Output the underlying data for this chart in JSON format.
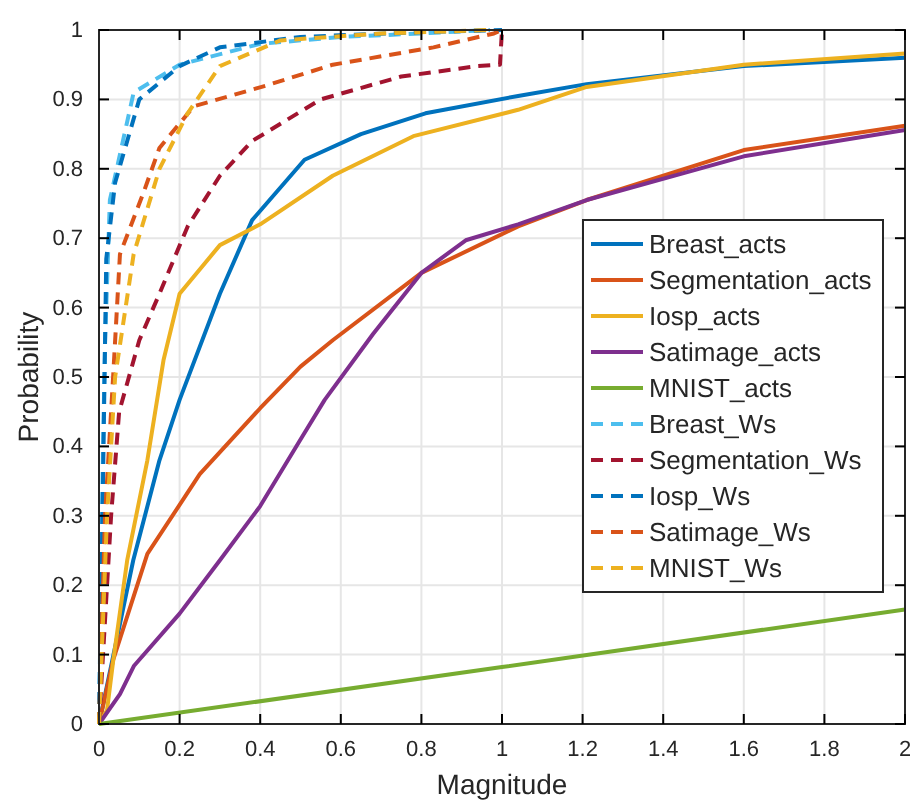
{
  "chart_data": {
    "type": "line",
    "xlabel": "Magnitude",
    "ylabel": "Probability",
    "xlim": [
      0,
      2
    ],
    "ylim": [
      0,
      1
    ],
    "xticks": [
      0,
      0.2,
      0.4,
      0.6,
      0.8,
      1,
      1.2,
      1.4,
      1.6,
      1.8,
      2
    ],
    "yticks": [
      0,
      0.1,
      0.2,
      0.3,
      0.4,
      0.5,
      0.6,
      0.7,
      0.8,
      0.9,
      1
    ],
    "grid": true,
    "legend": "right",
    "series": [
      {
        "name": "Breast_acts",
        "color": "#0072bd",
        "line_style": "solid",
        "x": [
          0,
          0.085,
          0.15,
          0.2,
          0.3,
          0.38,
          0.51,
          0.65,
          0.81,
          1.04,
          1.21,
          1.6,
          2
        ],
        "values": [
          0,
          0.236,
          0.38,
          0.467,
          0.62,
          0.726,
          0.813,
          0.85,
          0.88,
          0.905,
          0.922,
          0.948,
          0.96
        ]
      },
      {
        "name": "Segmentation_acts",
        "color": "#d95319",
        "line_style": "solid",
        "x": [
          0,
          0.035,
          0.12,
          0.25,
          0.4,
          0.5,
          0.58,
          0.8,
          1.04,
          1.21,
          1.6,
          2
        ],
        "values": [
          0,
          0.092,
          0.245,
          0.36,
          0.455,
          0.515,
          0.553,
          0.65,
          0.717,
          0.755,
          0.827,
          0.862
        ]
      },
      {
        "name": "Iosp_acts",
        "color": "#edb120",
        "line_style": "solid",
        "x": [
          0,
          0.02,
          0.035,
          0.07,
          0.12,
          0.16,
          0.2,
          0.3,
          0.4,
          0.58,
          0.78,
          1.04,
          1.21,
          1.6,
          2
        ],
        "values": [
          0,
          0.02,
          0.09,
          0.236,
          0.38,
          0.524,
          0.62,
          0.69,
          0.72,
          0.79,
          0.847,
          0.885,
          0.918,
          0.95,
          0.966
        ]
      },
      {
        "name": "Satimage_acts",
        "color": "#7e2f8e",
        "line_style": "solid",
        "x": [
          0,
          0.052,
          0.087,
          0.2,
          0.3,
          0.4,
          0.5,
          0.56,
          0.68,
          0.8,
          0.91,
          1.04,
          1.21,
          1.6,
          2
        ],
        "values": [
          0,
          0.043,
          0.084,
          0.159,
          0.236,
          0.314,
          0.41,
          0.467,
          0.562,
          0.65,
          0.697,
          0.72,
          0.755,
          0.818,
          0.856
        ]
      },
      {
        "name": "MNIST_acts",
        "color": "#77ac30",
        "line_style": "solid",
        "x": [
          0,
          1,
          2
        ],
        "values": [
          0,
          0.082,
          0.165
        ]
      },
      {
        "name": "Breast_Ws",
        "color": "#4dbeee",
        "line_style": "dashed",
        "x": [
          0,
          0.005,
          0.01,
          0.015,
          0.027,
          0.086,
          0.2,
          0.4,
          0.6,
          0.8,
          0.97
        ],
        "values": [
          0,
          0.2,
          0.4,
          0.55,
          0.755,
          0.91,
          0.95,
          0.98,
          0.99,
          0.995,
          1
        ]
      },
      {
        "name": "Segmentation_Ws",
        "color": "#a2142f",
        "line_style": "dashed",
        "x": [
          0,
          0.01,
          0.03,
          0.05,
          0.1,
          0.15,
          0.22,
          0.3,
          0.38,
          0.55,
          0.75,
          0.94,
          0.995,
          1
        ],
        "values": [
          0,
          0.1,
          0.3,
          0.45,
          0.553,
          0.62,
          0.717,
          0.79,
          0.84,
          0.9,
          0.933,
          0.948,
          0.95,
          1
        ]
      },
      {
        "name": "Iosp_Ws",
        "color": "#0072bd",
        "line_style": "dashed",
        "x": [
          0,
          0.01,
          0.018,
          0.04,
          0.1,
          0.2,
          0.3,
          0.5,
          0.8,
          1
        ],
        "values": [
          0,
          0.35,
          0.67,
          0.78,
          0.9,
          0.948,
          0.975,
          0.99,
          0.997,
          1
        ]
      },
      {
        "name": "Satimage_Ws",
        "color": "#d95319",
        "line_style": "dashed",
        "x": [
          0,
          0.015,
          0.035,
          0.052,
          0.11,
          0.15,
          0.235,
          0.415,
          0.58,
          0.83,
          0.98,
          1
        ],
        "values": [
          0,
          0.3,
          0.5,
          0.677,
          0.765,
          0.83,
          0.89,
          0.92,
          0.95,
          0.975,
          0.995,
          1
        ]
      },
      {
        "name": "MNIST_Ws",
        "color": "#edb120",
        "line_style": "dashed",
        "x": [
          0,
          0.02,
          0.04,
          0.086,
          0.15,
          0.22,
          0.3,
          0.45,
          0.7,
          0.97
        ],
        "values": [
          0,
          0.3,
          0.5,
          0.677,
          0.8,
          0.88,
          0.948,
          0.985,
          0.995,
          1
        ]
      }
    ]
  }
}
